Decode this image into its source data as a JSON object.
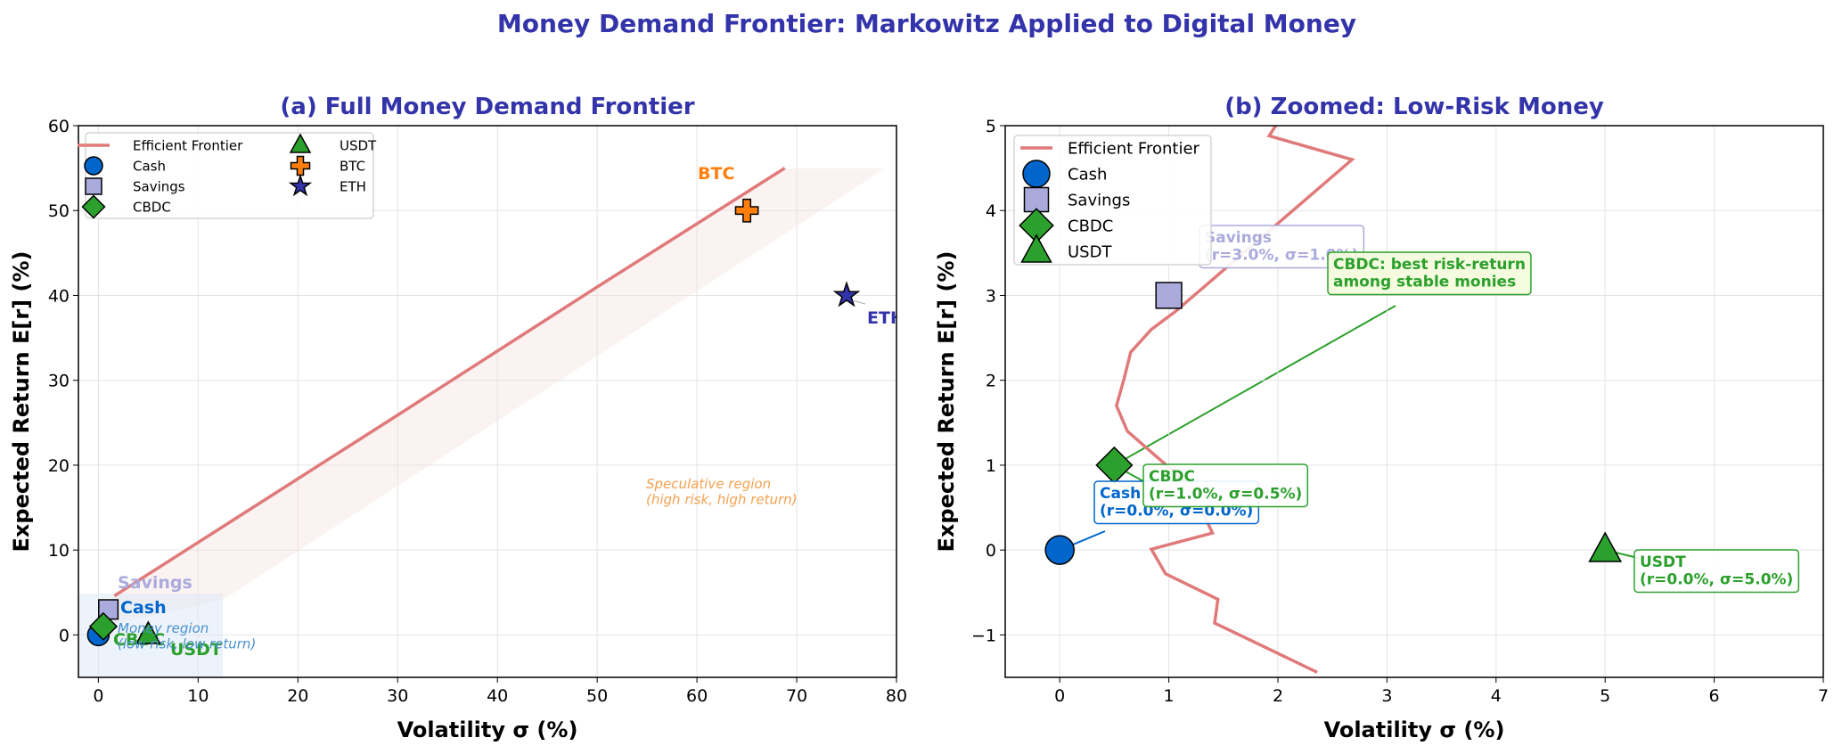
{
  "title": "Money Demand Frontier: Markowitz Applied to Digital Money",
  "chart_data": [
    {
      "type": "scatter",
      "title": "(a) Full Money Demand Frontier",
      "xlabel": "Volatility σ (%)",
      "ylabel": "Expected Return E[r] (%)",
      "xlim": [
        -2,
        80
      ],
      "ylim": [
        -5,
        60
      ],
      "xticks": [
        0,
        10,
        20,
        30,
        40,
        50,
        60,
        70,
        80
      ],
      "yticks": [
        0,
        10,
        20,
        30,
        40,
        50,
        60
      ],
      "grid": true,
      "legend": "upper left",
      "series": [
        {
          "name": "Efficient Frontier",
          "type": "line",
          "color": "#e07a7a",
          "x": [
            1.6,
            10,
            30,
            50,
            68.8
          ],
          "values": [
            4.6,
            10.9,
            25.9,
            41,
            55
          ]
        },
        {
          "name": "Cash",
          "marker": "circle",
          "color": "#0066cc",
          "x": [
            0
          ],
          "values": [
            0
          ]
        },
        {
          "name": "Savings",
          "marker": "square",
          "color": "#aaaadd",
          "x": [
            1
          ],
          "values": [
            3
          ]
        },
        {
          "name": "CBDC",
          "marker": "diamond",
          "color": "#2ca02c",
          "x": [
            0.5
          ],
          "values": [
            1
          ]
        },
        {
          "name": "USDT",
          "marker": "triangle",
          "color": "#2ca02c",
          "x": [
            5
          ],
          "values": [
            0
          ]
        },
        {
          "name": "BTC",
          "marker": "plus",
          "color": "#ff7f0e",
          "x": [
            65
          ],
          "values": [
            50
          ]
        },
        {
          "name": "ETH",
          "marker": "star",
          "color": "#3333aa",
          "x": [
            75
          ],
          "values": [
            40
          ]
        }
      ],
      "annotations": [
        {
          "lines": [
            "Speculative region",
            "(high risk, high return)"
          ],
          "color": "#f5a050"
        },
        {
          "lines": [
            "Money region",
            "(low risk, low return)"
          ],
          "color": "#4a90d0"
        }
      ]
    },
    {
      "type": "scatter",
      "title": "(b) Zoomed: Low-Risk Money",
      "xlabel": "Volatility σ (%)",
      "ylabel": "Expected Return E[r] (%)",
      "xlim": [
        -0.5,
        7
      ],
      "ylim": [
        -1.5,
        5
      ],
      "xticks": [
        0,
        1,
        2,
        3,
        4,
        5,
        6,
        7
      ],
      "yticks": [
        {
          "value": -1,
          "label": "−1"
        },
        0,
        1,
        2,
        3,
        4,
        5
      ],
      "grid": true,
      "legend": "upper left",
      "series": [
        {
          "name": "Efficient Frontier",
          "type": "line",
          "color": "#e07a7a",
          "x": [
            2.36,
            1.42,
            1.45,
            0.97,
            0.84,
            1.4,
            1.2,
            0.62,
            0.52,
            0.59,
            0.65,
            0.84,
            1.06,
            2.68,
            1.92,
            2.03
          ],
          "values": [
            -1.44,
            -0.86,
            -0.58,
            -0.28,
            0.01,
            0.2,
            0.75,
            1.4,
            1.7,
            2.02,
            2.33,
            2.6,
            2.81,
            4.6,
            4.88,
            5.1
          ]
        },
        {
          "name": "Cash",
          "marker": "circle",
          "color": "#0066cc",
          "x": [
            0
          ],
          "values": [
            0
          ]
        },
        {
          "name": "Savings",
          "marker": "square",
          "color": "#aaaadd",
          "x": [
            1
          ],
          "values": [
            3
          ]
        },
        {
          "name": "CBDC",
          "marker": "diamond",
          "color": "#2ca02c",
          "x": [
            0.5
          ],
          "values": [
            1
          ]
        },
        {
          "name": "USDT",
          "marker": "triangle",
          "color": "#2ca02c",
          "x": [
            5
          ],
          "values": [
            0
          ]
        }
      ],
      "annotations": [
        {
          "lines": [
            "Savings",
            "(r=3.0%, σ=1.0%)"
          ],
          "color": "#aaaadd"
        },
        {
          "lines": [
            "CBDC: best risk-return",
            "among stable monies"
          ],
          "color": "#2ca02c"
        },
        {
          "lines": [
            "Cash",
            "(r=0.0%, σ=0.0%)"
          ],
          "color": "#0066cc"
        },
        {
          "lines": [
            "CBDC",
            "(r=1.0%, σ=0.5%)"
          ],
          "color": "#2ca02c"
        },
        {
          "lines": [
            "USDT",
            "(r=0.0%, σ=5.0%)"
          ],
          "color": "#2ca02c"
        }
      ]
    }
  ]
}
